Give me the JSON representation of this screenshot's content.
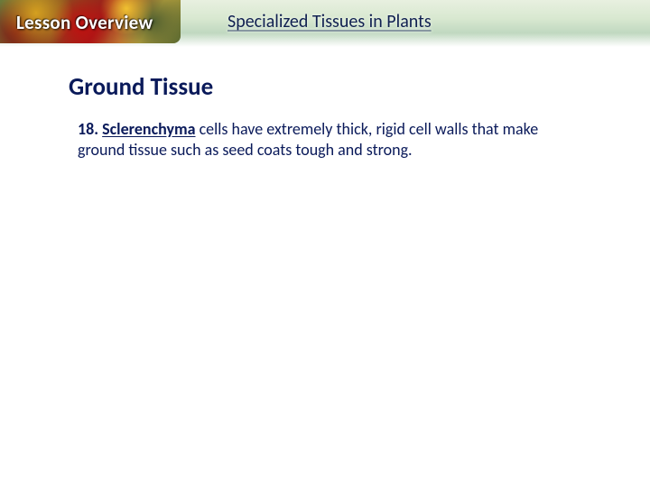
{
  "header": {
    "lesson_label": "Lesson Overview",
    "topic": "Specialized Tissues in Plants"
  },
  "section": {
    "heading": "Ground Tissue"
  },
  "body": {
    "item_number": "18.",
    "term": "Sclerenchyma",
    "rest": " cells have extremely thick, rigid cell walls that make ground tissue such as seed coats tough and strong."
  },
  "colors": {
    "heading_color": "#0a1a5a",
    "body_color": "#0a1a5a",
    "header_gradient_top": "#e8f0e0",
    "header_gradient_bottom": "#ffffff"
  },
  "typography": {
    "heading_fontsize_pt": 20,
    "body_fontsize_pt": 14,
    "header_label_fontsize_pt": 16
  }
}
